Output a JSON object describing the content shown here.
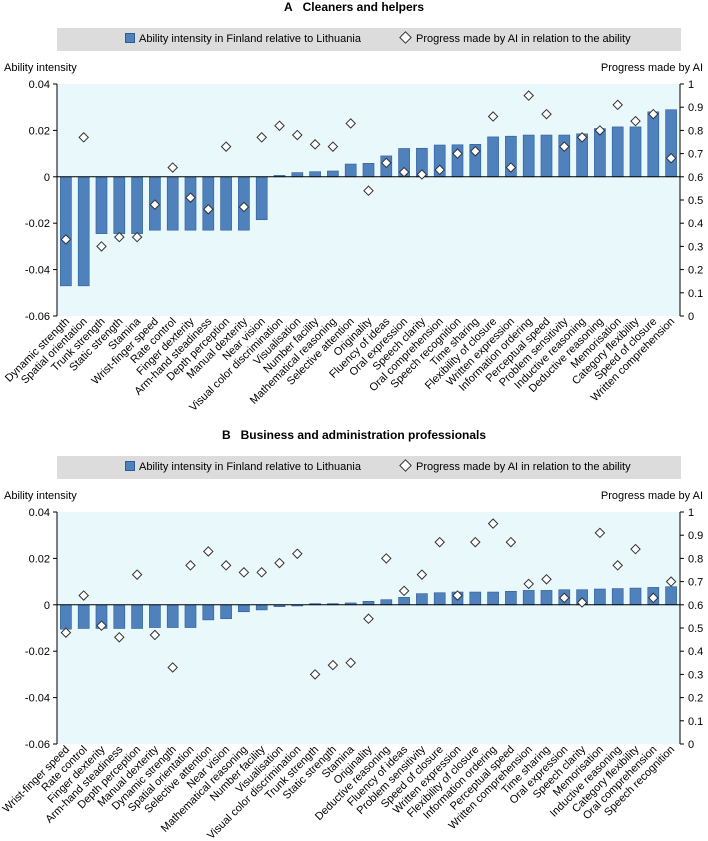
{
  "chart_data": [
    {
      "panel_label": "A",
      "type": "bar",
      "title": "Cleaners and helpers",
      "legend": {
        "bar": "Ability intensity in Finland relative to Lithuania",
        "marker": "Progress made by AI in relation to the ability"
      },
      "ylabel": "Ability intensity",
      "y2label": "Progress made by AI",
      "ylim": [
        -0.06,
        0.04
      ],
      "y2lim": [
        0,
        1
      ],
      "yticks": [
        "0.04",
        "0.02",
        "0",
        "-0.02",
        "-0.04",
        "-0.06"
      ],
      "y2ticks": [
        "1",
        "0.9",
        "0.8",
        "0.7",
        "0.6",
        "0.5",
        "0.4",
        "0.3",
        "0.2",
        "0.1",
        "0"
      ],
      "categories": [
        "Dynamic strength",
        "Spatial orientation",
        "Trunk strength",
        "Static strength",
        "Stamina",
        "Wrist-finger speed",
        "Rate control",
        "Finger dexterity",
        "Arm-hand steadiness",
        "Depth perception",
        "Manual dexterity",
        "Near vision",
        "Visual color discrimination",
        "Visualisation",
        "Number facility",
        "Mathematical reasoning",
        "Selective attention",
        "Originality",
        "Fluency of ideas",
        "Oral expression",
        "Speech clarity",
        "Oral comprehension",
        "Speech recognition",
        "Time sharing",
        "Flexibility of closure",
        "Written expression",
        "Information ordering",
        "Perceptual speed",
        "Problem sensitivity",
        "Inductive reasoning",
        "Deductive reasoning",
        "Memorisation",
        "Category flexibility",
        "Speed of closure",
        "Written comprehension"
      ],
      "series": [
        {
          "name": "Ability intensity in Finland relative to Lithuania",
          "axis": "left",
          "values": [
            -0.047,
            -0.047,
            -0.0245,
            -0.0245,
            -0.0245,
            -0.023,
            -0.023,
            -0.023,
            -0.023,
            -0.023,
            -0.023,
            -0.0185,
            0.0006,
            0.0018,
            0.0022,
            0.0025,
            0.0055,
            0.0058,
            0.009,
            0.0122,
            0.0123,
            0.0137,
            0.0138,
            0.014,
            0.0172,
            0.0175,
            0.018,
            0.018,
            0.018,
            0.0185,
            0.0208,
            0.0215,
            0.0215,
            0.028,
            0.0289
          ]
        },
        {
          "name": "Progress made by AI in relation to the ability",
          "axis": "right",
          "values": [
            0.33,
            0.77,
            0.3,
            0.34,
            0.34,
            0.48,
            0.64,
            0.51,
            0.46,
            0.73,
            0.47,
            0.77,
            0.82,
            0.78,
            0.74,
            0.73,
            0.83,
            0.54,
            0.66,
            0.62,
            0.61,
            0.63,
            0.7,
            0.71,
            0.86,
            0.64,
            0.95,
            0.87,
            0.73,
            0.77,
            0.8,
            0.91,
            0.84,
            0.87,
            0.68
          ]
        }
      ]
    },
    {
      "panel_label": "B",
      "type": "bar",
      "title": "Business and administration professionals",
      "legend": {
        "bar": "Ability intensity in Finland relative to Lithuania",
        "marker": "Progress made by AI in relation to the ability"
      },
      "ylabel": "Ability intensity",
      "y2label": "Progress made by AI",
      "ylim": [
        -0.06,
        0.04
      ],
      "y2lim": [
        0,
        1
      ],
      "yticks": [
        "0.04",
        "0.02",
        "0",
        "-0.02",
        "-0.04",
        "-0.06"
      ],
      "y2ticks": [
        "1",
        "0.9",
        "0.8",
        "0.7",
        "0.6",
        "0.5",
        "0.4",
        "0.3",
        "0.2",
        "0.1",
        "0"
      ],
      "categories": [
        "Wrist-finger speed",
        "Rate control",
        "Finger dexterity",
        "Arm-hand steadiness",
        "Depth perception",
        "Manual dexterity",
        "Dynamic strength",
        "Spatial orientation",
        "Selective attention",
        "Near vision",
        "Mathematical reasoning",
        "Number facility",
        "Visualisation",
        "Visual color discrimination",
        "Trunk strength",
        "Static strength",
        "Stamina",
        "Originality",
        "Deductive reasoning",
        "Fluency of ideas",
        "Problem sensitivity",
        "Speed of closure",
        "Written expression",
        "Flexibility of closure",
        "Information ordering",
        "Perceptual speed",
        "Written comprehension",
        "Time sharing",
        "Oral expression",
        "Speech clarity",
        "Memorisation",
        "Inductive reasoning",
        "Category flexibility",
        "Oral comprehension",
        "Speech recognition"
      ],
      "series": [
        {
          "name": "Ability intensity in Finland relative to Lithuania",
          "axis": "left",
          "values": [
            -0.0105,
            -0.0102,
            -0.0102,
            -0.0102,
            -0.0102,
            -0.0098,
            -0.0098,
            -0.0098,
            -0.0065,
            -0.006,
            -0.003,
            -0.0022,
            -0.0008,
            -0.0005,
            0.0005,
            0.0005,
            0.0008,
            0.0015,
            0.0022,
            0.0032,
            0.0048,
            0.0052,
            0.0055,
            0.0055,
            0.0055,
            0.0058,
            0.0062,
            0.0062,
            0.0065,
            0.0065,
            0.0068,
            0.007,
            0.0072,
            0.0075,
            0.0078
          ]
        },
        {
          "name": "Progress made by AI in relation to the ability",
          "axis": "right",
          "values": [
            0.48,
            0.64,
            0.51,
            0.46,
            0.73,
            0.47,
            0.33,
            0.77,
            0.83,
            0.77,
            0.74,
            0.74,
            0.78,
            0.82,
            0.3,
            0.34,
            0.35,
            0.54,
            0.8,
            0.66,
            0.73,
            0.87,
            0.64,
            0.87,
            0.95,
            0.87,
            0.69,
            0.71,
            0.63,
            0.61,
            0.91,
            0.77,
            0.84,
            0.63,
            0.7
          ]
        }
      ]
    }
  ]
}
